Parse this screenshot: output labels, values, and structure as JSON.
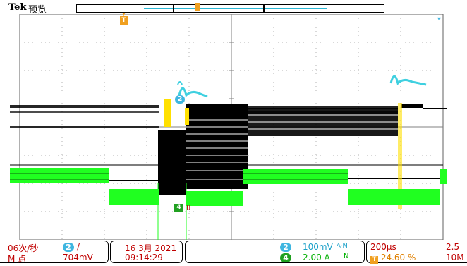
{
  "header": {
    "brand": "Tek",
    "mode": "预览"
  },
  "overview_bar": {
    "trigger_marker_label": "T"
  },
  "waveform": {
    "trigger_label": "T",
    "channel_marker_2": "2",
    "channel_label_4": "IL",
    "channel_marker_4": "4"
  },
  "readouts": {
    "acq_rate": "06次/秒",
    "record_points": "M 点",
    "trigger_channel": "2",
    "trigger_slope": "/",
    "trigger_level": "704mV",
    "date": "16 3月 2021",
    "time": "09:14:29",
    "ch2": {
      "badge": "2",
      "scale": "100mV",
      "coupling": "∿N"
    },
    "ch4": {
      "badge": "4",
      "scale": "2.00 A",
      "coupling": "N"
    },
    "horizontal": {
      "scale": "200µs",
      "position_label": "T",
      "position": "24.60 %",
      "right_top": "2.5",
      "right_bottom": "10M"
    }
  },
  "colors": {
    "ch2": "#3fb6e0",
    "ch4": "#20ff20",
    "trigger": "#f0a020",
    "grid": "#a0a0a0"
  }
}
